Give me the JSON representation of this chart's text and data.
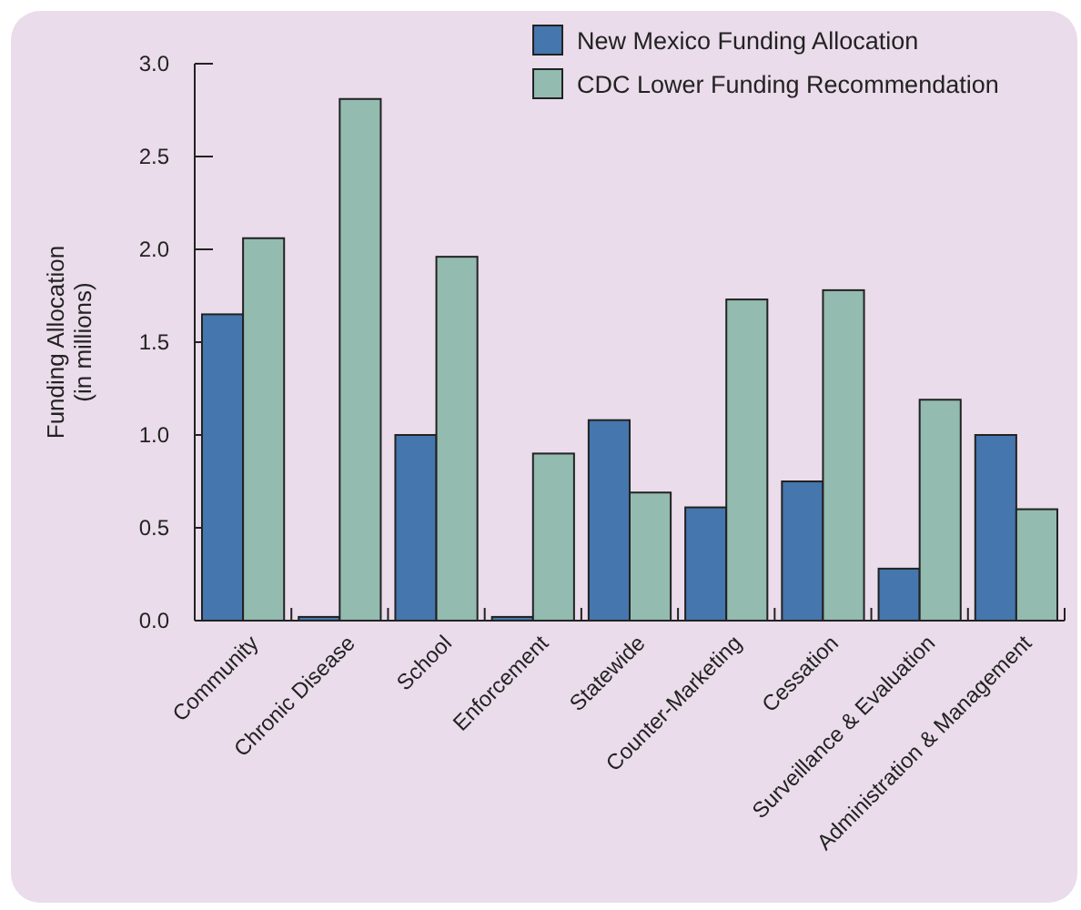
{
  "chart_data": {
    "type": "bar",
    "ylabel": "Funding Allocation\n(in millions)",
    "categories": [
      "Community",
      "Chronic Disease",
      "School",
      "Enforcement",
      "Statewide",
      "Counter-Marketing",
      "Cessation",
      "Surveillance & Evaluation",
      "Administration & Management"
    ],
    "series": [
      {
        "name": "New Mexico Funding Allocation",
        "color": "#4576ad",
        "values": [
          1.65,
          0.02,
          1.0,
          0.02,
          1.08,
          0.61,
          0.75,
          0.28,
          1.0
        ]
      },
      {
        "name": "CDC Lower Funding Recommendation",
        "color": "#93bbb0",
        "values": [
          2.06,
          2.81,
          1.96,
          0.9,
          0.69,
          1.73,
          1.78,
          1.19,
          0.6
        ]
      }
    ],
    "ylim": [
      0,
      3
    ],
    "yticks": [
      {
        "value": 0,
        "label": "0.0"
      },
      {
        "value": 0.5,
        "label": "0.5"
      },
      {
        "value": 1,
        "label": "1.0"
      },
      {
        "value": 1.5,
        "label": "1.5"
      },
      {
        "value": 2,
        "label": "2.0"
      },
      {
        "value": 2.5,
        "label": "2.5"
      },
      {
        "value": 3,
        "label": "3.0"
      }
    ],
    "grid": false,
    "legend": "top right"
  }
}
